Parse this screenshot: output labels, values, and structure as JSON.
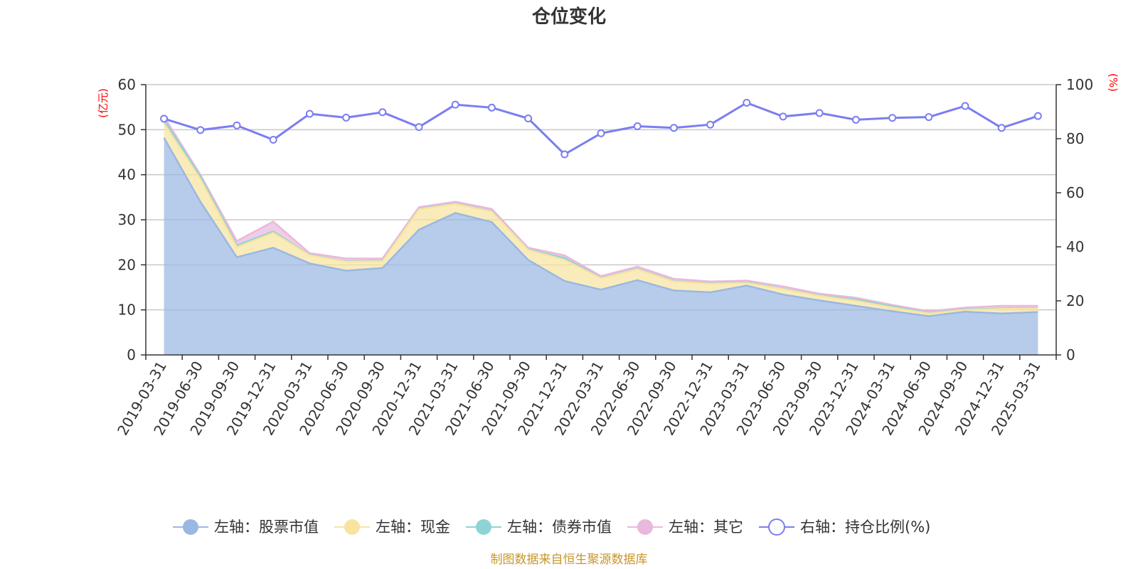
{
  "chart_data": {
    "type": "area",
    "title": "仓位变化",
    "left_axis": {
      "unit_label": "(亿元)",
      "ylim": [
        0,
        60
      ],
      "ticks": [
        0,
        10,
        20,
        30,
        40,
        50,
        60
      ]
    },
    "right_axis": {
      "unit_label": "(%)",
      "ylim": [
        0,
        100
      ],
      "ticks": [
        0,
        20,
        40,
        60,
        80,
        100
      ]
    },
    "categories": [
      "2019-03-31",
      "2019-06-30",
      "2019-09-30",
      "2019-12-31",
      "2020-03-31",
      "2020-06-30",
      "2020-09-30",
      "2020-12-31",
      "2021-03-31",
      "2021-06-30",
      "2021-09-30",
      "2021-12-31",
      "2022-03-31",
      "2022-06-30",
      "2022-09-30",
      "2022-12-31",
      "2023-03-31",
      "2023-06-30",
      "2023-09-30",
      "2023-12-31",
      "2024-03-31",
      "2024-06-30",
      "2024-09-30",
      "2024-12-31",
      "2025-03-31"
    ],
    "series": [
      {
        "name": "左轴：股票市值",
        "axis": "left",
        "stacked": true,
        "color": "#9ab8e2",
        "values": [
          48.2,
          34.0,
          21.7,
          23.8,
          20.3,
          18.7,
          19.3,
          27.8,
          31.5,
          29.5,
          21.1,
          16.4,
          14.5,
          16.6,
          14.3,
          13.9,
          15.4,
          13.4,
          12.1,
          10.9,
          9.7,
          8.6,
          9.6,
          9.2,
          9.5
        ]
      },
      {
        "name": "左轴：现金",
        "axis": "left",
        "stacked": true,
        "color": "#f8e4a0",
        "values": [
          3.2,
          5.0,
          2.2,
          3.3,
          1.8,
          2.0,
          1.5,
          4.5,
          2.0,
          2.3,
          2.2,
          4.7,
          2.5,
          2.4,
          2.0,
          1.9,
          0.6,
          1.2,
          1.0,
          1.1,
          0.8,
          0.6,
          0.4,
          1.0,
          0.8
        ]
      },
      {
        "name": "左轴：债券市值",
        "axis": "left",
        "stacked": true,
        "color": "#8fd4d4",
        "values": [
          0.8,
          0.6,
          0.4,
          0.3,
          0.1,
          0.1,
          0.1,
          0.1,
          0.1,
          0.1,
          0.1,
          0.4,
          0.1,
          0.1,
          0.1,
          0.1,
          0.1,
          0.1,
          0.1,
          0.3,
          0.3,
          0.1,
          0.1,
          0.1,
          0.1
        ]
      },
      {
        "name": "左轴：其它",
        "axis": "left",
        "stacked": true,
        "color": "#eab8dc",
        "values": [
          0.7,
          0.4,
          1.0,
          2.2,
          0.4,
          0.6,
          0.5,
          0.4,
          0.4,
          0.5,
          0.4,
          0.6,
          0.4,
          0.5,
          0.5,
          0.4,
          0.4,
          0.5,
          0.4,
          0.4,
          0.3,
          0.4,
          0.4,
          0.6,
          0.5
        ]
      },
      {
        "name": "右轴：持仓比例(%)",
        "axis": "right",
        "type": "line",
        "color": "#7b7ef0",
        "values": [
          87.4,
          83.2,
          84.9,
          79.6,
          89.2,
          87.8,
          89.8,
          84.3,
          92.6,
          91.5,
          87.5,
          74.2,
          82.0,
          84.6,
          84.0,
          85.2,
          93.3,
          88.2,
          89.5,
          87.0,
          87.7,
          88.0,
          92.1,
          84.0,
          88.4
        ]
      }
    ],
    "legend_placement": "bottom-center",
    "grid": true
  },
  "source_note": "制图数据来自恒生聚源数据库"
}
